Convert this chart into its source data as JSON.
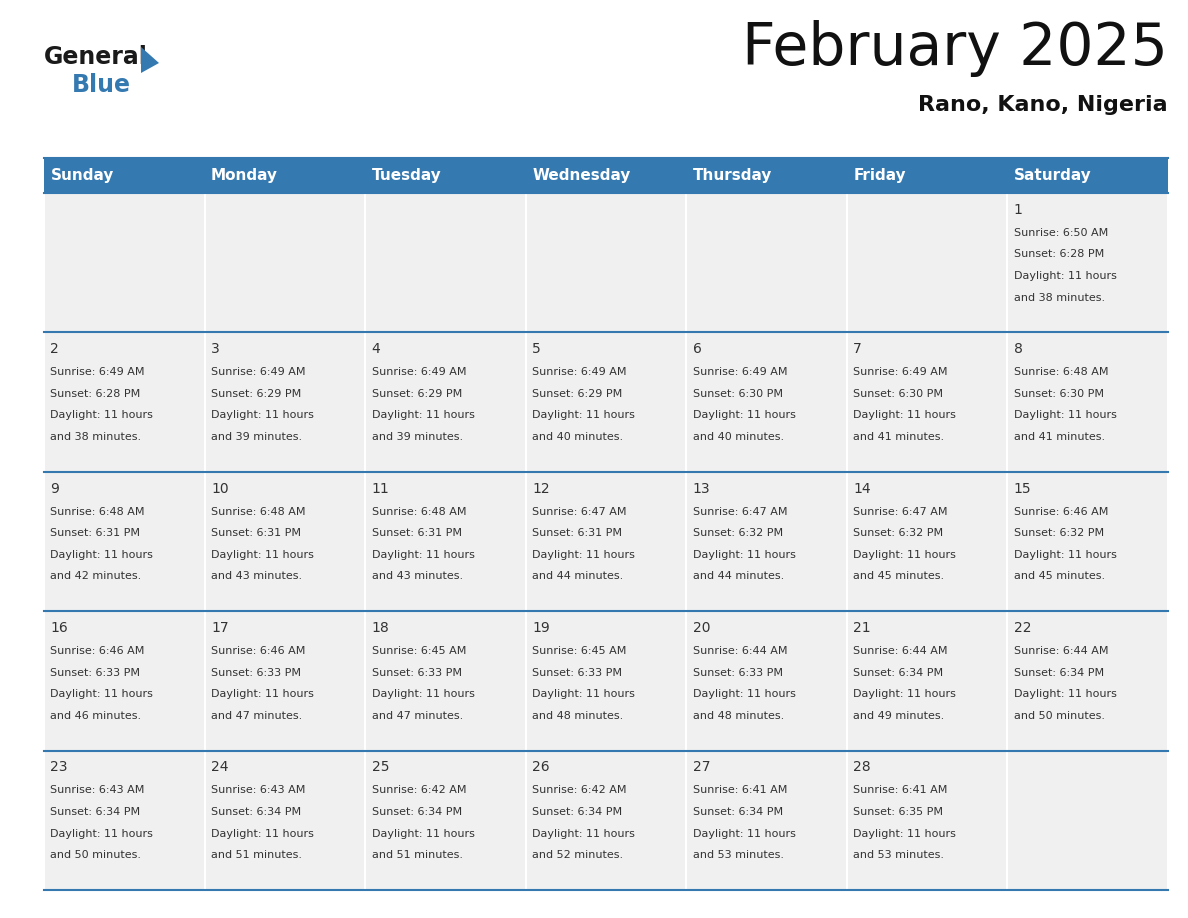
{
  "title": "February 2025",
  "subtitle": "Rano, Kano, Nigeria",
  "header_color": "#3579B1",
  "header_text_color": "#FFFFFF",
  "day_names": [
    "Sunday",
    "Monday",
    "Tuesday",
    "Wednesday",
    "Thursday",
    "Friday",
    "Saturday"
  ],
  "background_color": "#FFFFFF",
  "cell_bg_color": "#F0F0F0",
  "border_color": "#3578B0",
  "text_color": "#333333",
  "logo_text_color": "#1a1a1a",
  "logo_blue_color": "#3579B1",
  "title_fontsize": 42,
  "subtitle_fontsize": 16,
  "header_fontsize": 11,
  "day_num_fontsize": 10,
  "cell_text_fontsize": 8,
  "days": [
    {
      "day": 1,
      "col": 6,
      "row": 0,
      "sunrise": "6:50 AM",
      "sunset": "6:28 PM",
      "daylight": "11 hours and 38 minutes"
    },
    {
      "day": 2,
      "col": 0,
      "row": 1,
      "sunrise": "6:49 AM",
      "sunset": "6:28 PM",
      "daylight": "11 hours and 38 minutes"
    },
    {
      "day": 3,
      "col": 1,
      "row": 1,
      "sunrise": "6:49 AM",
      "sunset": "6:29 PM",
      "daylight": "11 hours and 39 minutes"
    },
    {
      "day": 4,
      "col": 2,
      "row": 1,
      "sunrise": "6:49 AM",
      "sunset": "6:29 PM",
      "daylight": "11 hours and 39 minutes"
    },
    {
      "day": 5,
      "col": 3,
      "row": 1,
      "sunrise": "6:49 AM",
      "sunset": "6:29 PM",
      "daylight": "11 hours and 40 minutes"
    },
    {
      "day": 6,
      "col": 4,
      "row": 1,
      "sunrise": "6:49 AM",
      "sunset": "6:30 PM",
      "daylight": "11 hours and 40 minutes"
    },
    {
      "day": 7,
      "col": 5,
      "row": 1,
      "sunrise": "6:49 AM",
      "sunset": "6:30 PM",
      "daylight": "11 hours and 41 minutes"
    },
    {
      "day": 8,
      "col": 6,
      "row": 1,
      "sunrise": "6:48 AM",
      "sunset": "6:30 PM",
      "daylight": "11 hours and 41 minutes"
    },
    {
      "day": 9,
      "col": 0,
      "row": 2,
      "sunrise": "6:48 AM",
      "sunset": "6:31 PM",
      "daylight": "11 hours and 42 minutes"
    },
    {
      "day": 10,
      "col": 1,
      "row": 2,
      "sunrise": "6:48 AM",
      "sunset": "6:31 PM",
      "daylight": "11 hours and 43 minutes"
    },
    {
      "day": 11,
      "col": 2,
      "row": 2,
      "sunrise": "6:48 AM",
      "sunset": "6:31 PM",
      "daylight": "11 hours and 43 minutes"
    },
    {
      "day": 12,
      "col": 3,
      "row": 2,
      "sunrise": "6:47 AM",
      "sunset": "6:31 PM",
      "daylight": "11 hours and 44 minutes"
    },
    {
      "day": 13,
      "col": 4,
      "row": 2,
      "sunrise": "6:47 AM",
      "sunset": "6:32 PM",
      "daylight": "11 hours and 44 minutes"
    },
    {
      "day": 14,
      "col": 5,
      "row": 2,
      "sunrise": "6:47 AM",
      "sunset": "6:32 PM",
      "daylight": "11 hours and 45 minutes"
    },
    {
      "day": 15,
      "col": 6,
      "row": 2,
      "sunrise": "6:46 AM",
      "sunset": "6:32 PM",
      "daylight": "11 hours and 45 minutes"
    },
    {
      "day": 16,
      "col": 0,
      "row": 3,
      "sunrise": "6:46 AM",
      "sunset": "6:33 PM",
      "daylight": "11 hours and 46 minutes"
    },
    {
      "day": 17,
      "col": 1,
      "row": 3,
      "sunrise": "6:46 AM",
      "sunset": "6:33 PM",
      "daylight": "11 hours and 47 minutes"
    },
    {
      "day": 18,
      "col": 2,
      "row": 3,
      "sunrise": "6:45 AM",
      "sunset": "6:33 PM",
      "daylight": "11 hours and 47 minutes"
    },
    {
      "day": 19,
      "col": 3,
      "row": 3,
      "sunrise": "6:45 AM",
      "sunset": "6:33 PM",
      "daylight": "11 hours and 48 minutes"
    },
    {
      "day": 20,
      "col": 4,
      "row": 3,
      "sunrise": "6:44 AM",
      "sunset": "6:33 PM",
      "daylight": "11 hours and 48 minutes"
    },
    {
      "day": 21,
      "col": 5,
      "row": 3,
      "sunrise": "6:44 AM",
      "sunset": "6:34 PM",
      "daylight": "11 hours and 49 minutes"
    },
    {
      "day": 22,
      "col": 6,
      "row": 3,
      "sunrise": "6:44 AM",
      "sunset": "6:34 PM",
      "daylight": "11 hours and 50 minutes"
    },
    {
      "day": 23,
      "col": 0,
      "row": 4,
      "sunrise": "6:43 AM",
      "sunset": "6:34 PM",
      "daylight": "11 hours and 50 minutes"
    },
    {
      "day": 24,
      "col": 1,
      "row": 4,
      "sunrise": "6:43 AM",
      "sunset": "6:34 PM",
      "daylight": "11 hours and 51 minutes"
    },
    {
      "day": 25,
      "col": 2,
      "row": 4,
      "sunrise": "6:42 AM",
      "sunset": "6:34 PM",
      "daylight": "11 hours and 51 minutes"
    },
    {
      "day": 26,
      "col": 3,
      "row": 4,
      "sunrise": "6:42 AM",
      "sunset": "6:34 PM",
      "daylight": "11 hours and 52 minutes"
    },
    {
      "day": 27,
      "col": 4,
      "row": 4,
      "sunrise": "6:41 AM",
      "sunset": "6:34 PM",
      "daylight": "11 hours and 53 minutes"
    },
    {
      "day": 28,
      "col": 5,
      "row": 4,
      "sunrise": "6:41 AM",
      "sunset": "6:35 PM",
      "daylight": "11 hours and 53 minutes"
    }
  ]
}
